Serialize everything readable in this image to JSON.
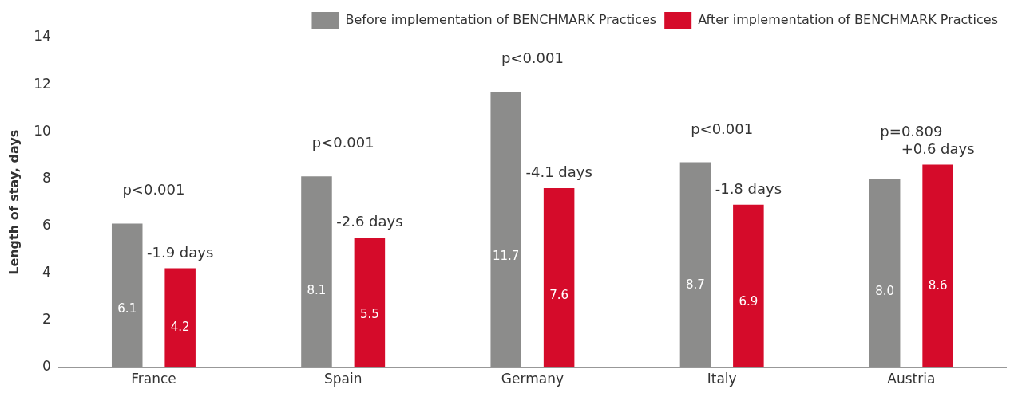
{
  "chart_data": {
    "type": "bar",
    "ylabel": "Length of stay, days",
    "categories": [
      "France",
      "Spain",
      "Germany",
      "Italy",
      "Austria"
    ],
    "series": [
      {
        "name": "Before implementation of BENCHMARK Practices",
        "color": "#8c8c8b",
        "values": [
          6.1,
          8.1,
          11.7,
          8.7,
          8.0
        ],
        "value_labels": [
          "6.1",
          "8.1",
          "11.7",
          "8.7",
          "8.0"
        ]
      },
      {
        "name": "After implementation of BENCHMARK Practices",
        "color": "#d50b2a",
        "values": [
          4.2,
          5.5,
          7.6,
          6.9,
          8.6
        ],
        "value_labels": [
          "4.2",
          "5.5",
          "7.6",
          "6.9",
          "8.6"
        ]
      }
    ],
    "ylim": [
      0,
      14
    ],
    "yticks": [
      0,
      2,
      4,
      6,
      8,
      10,
      12,
      14
    ],
    "grid": false,
    "legend": "top right",
    "annotations": [
      "p<0.001",
      "-1.9 days",
      "p<0.001",
      "-2.6 days",
      "p<0.001",
      "-4.1 days",
      "p<0.001",
      "-1.8 days",
      "p=0.809",
      "+0.6 days"
    ]
  }
}
